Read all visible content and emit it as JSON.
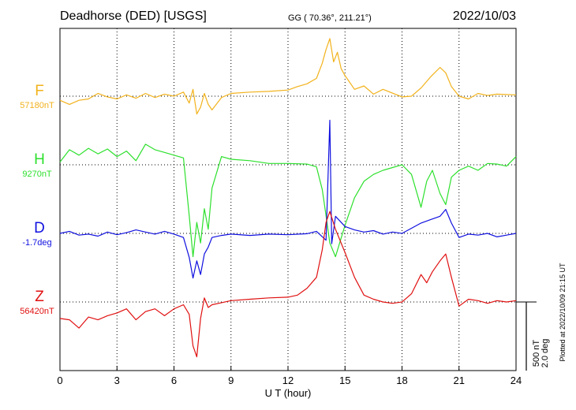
{
  "header": {
    "station": "Deadhorse (DED)  [USGS]",
    "coords": "GG ( 70.36°, 211.21°)",
    "date": "2022/10/03"
  },
  "footer": {
    "plotted_at": "Plotted at 2022/10/09 21:15 UT"
  },
  "chart_data": {
    "type": "line",
    "xlabel": "U T (hour)",
    "xlim": [
      0,
      24
    ],
    "x_ticks": [
      0,
      3,
      6,
      9,
      12,
      15,
      18,
      21,
      24
    ],
    "x_tick_labels": [
      "0",
      "3",
      "6",
      "9",
      "12",
      "15",
      "18",
      "21",
      "24"
    ],
    "grid": true,
    "scale_bar": {
      "label1": "500 nT",
      "label2": "2.0 deg",
      "nT": 500,
      "deg": 2.0
    },
    "series": [
      {
        "name": "F",
        "baseline_label": "57180nT",
        "baseline": 57180,
        "unit": "nT",
        "color": "#f2b21c",
        "points": [
          [
            0,
            57150
          ],
          [
            0.5,
            57120
          ],
          [
            1,
            57150
          ],
          [
            1.5,
            57160
          ],
          [
            2,
            57200
          ],
          [
            2.5,
            57175
          ],
          [
            3,
            57160
          ],
          [
            3.5,
            57190
          ],
          [
            4,
            57165
          ],
          [
            4.5,
            57200
          ],
          [
            5,
            57170
          ],
          [
            5.5,
            57195
          ],
          [
            6,
            57180
          ],
          [
            6.5,
            57210
          ],
          [
            6.8,
            57130
          ],
          [
            7,
            57230
          ],
          [
            7.2,
            57050
          ],
          [
            7.4,
            57100
          ],
          [
            7.6,
            57200
          ],
          [
            7.8,
            57120
          ],
          [
            8,
            57080
          ],
          [
            8.5,
            57170
          ],
          [
            9,
            57200
          ],
          [
            10,
            57210
          ],
          [
            11,
            57215
          ],
          [
            12,
            57225
          ],
          [
            12.5,
            57250
          ],
          [
            13,
            57270
          ],
          [
            13.5,
            57310
          ],
          [
            13.8,
            57420
          ],
          [
            14,
            57520
          ],
          [
            14.2,
            57600
          ],
          [
            14.4,
            57430
          ],
          [
            14.6,
            57500
          ],
          [
            14.8,
            57380
          ],
          [
            15,
            57330
          ],
          [
            15.5,
            57230
          ],
          [
            16,
            57255
          ],
          [
            16.5,
            57195
          ],
          [
            17,
            57230
          ],
          [
            18,
            57175
          ],
          [
            18.5,
            57180
          ],
          [
            19,
            57240
          ],
          [
            19.5,
            57320
          ],
          [
            20,
            57390
          ],
          [
            20.3,
            57350
          ],
          [
            20.6,
            57250
          ],
          [
            21,
            57180
          ],
          [
            21.5,
            57160
          ],
          [
            22,
            57200
          ],
          [
            22.5,
            57185
          ],
          [
            23,
            57195
          ],
          [
            24,
            57190
          ]
        ]
      },
      {
        "name": "H",
        "baseline_label": "9270nT",
        "baseline": 9270,
        "unit": "nT",
        "color": "#2de02d",
        "points": [
          [
            0,
            9290
          ],
          [
            0.5,
            9380
          ],
          [
            1,
            9340
          ],
          [
            1.5,
            9390
          ],
          [
            2,
            9350
          ],
          [
            2.5,
            9385
          ],
          [
            3,
            9330
          ],
          [
            3.5,
            9370
          ],
          [
            4,
            9300
          ],
          [
            4.5,
            9420
          ],
          [
            5,
            9380
          ],
          [
            5.5,
            9360
          ],
          [
            6,
            9340
          ],
          [
            6.5,
            9320
          ],
          [
            6.8,
            8900
          ],
          [
            7,
            8600
          ],
          [
            7.2,
            8850
          ],
          [
            7.4,
            8700
          ],
          [
            7.6,
            8950
          ],
          [
            7.8,
            8800
          ],
          [
            8,
            9100
          ],
          [
            8.5,
            9330
          ],
          [
            9,
            9310
          ],
          [
            10,
            9300
          ],
          [
            11,
            9280
          ],
          [
            12,
            9280
          ],
          [
            13,
            9275
          ],
          [
            13.5,
            9255
          ],
          [
            13.8,
            9090
          ],
          [
            14,
            8900
          ],
          [
            14.2,
            8700
          ],
          [
            14.5,
            8600
          ],
          [
            15,
            8830
          ],
          [
            15.5,
            9030
          ],
          [
            16,
            9150
          ],
          [
            16.5,
            9200
          ],
          [
            17,
            9230
          ],
          [
            17.5,
            9250
          ],
          [
            18,
            9270
          ],
          [
            18.5,
            9200
          ],
          [
            19,
            8960
          ],
          [
            19.3,
            9150
          ],
          [
            19.6,
            9230
          ],
          [
            20,
            9060
          ],
          [
            20.3,
            8980
          ],
          [
            20.6,
            9180
          ],
          [
            21,
            9230
          ],
          [
            21.5,
            9260
          ],
          [
            22,
            9230
          ],
          [
            22.5,
            9280
          ],
          [
            23,
            9275
          ],
          [
            23.5,
            9260
          ],
          [
            24,
            9330
          ]
        ]
      },
      {
        "name": "D",
        "baseline_label": "-1.7deg",
        "baseline": -1.7,
        "unit": "deg",
        "color": "#1010e0",
        "points": [
          [
            0,
            -1.7
          ],
          [
            0.5,
            -1.64
          ],
          [
            1,
            -1.75
          ],
          [
            1.5,
            -1.72
          ],
          [
            2,
            -1.78
          ],
          [
            2.5,
            -1.66
          ],
          [
            3,
            -1.74
          ],
          [
            3.5,
            -1.68
          ],
          [
            4,
            -1.6
          ],
          [
            4.5,
            -1.66
          ],
          [
            5,
            -1.72
          ],
          [
            5.5,
            -1.64
          ],
          [
            6,
            -1.72
          ],
          [
            6.5,
            -1.82
          ],
          [
            6.8,
            -2.4
          ],
          [
            7,
            -3.0
          ],
          [
            7.2,
            -2.5
          ],
          [
            7.4,
            -2.9
          ],
          [
            7.6,
            -2.3
          ],
          [
            7.8,
            -2.1
          ],
          [
            8,
            -1.82
          ],
          [
            8.5,
            -1.76
          ],
          [
            9,
            -1.72
          ],
          [
            10,
            -1.76
          ],
          [
            11,
            -1.72
          ],
          [
            12,
            -1.74
          ],
          [
            13,
            -1.71
          ],
          [
            13.5,
            -1.64
          ],
          [
            14,
            -1.9
          ],
          [
            14.2,
            1.6
          ],
          [
            14.3,
            -2.0
          ],
          [
            14.5,
            -1.2
          ],
          [
            15,
            -1.5
          ],
          [
            15.5,
            -1.6
          ],
          [
            16,
            -1.66
          ],
          [
            16.5,
            -1.62
          ],
          [
            17,
            -1.72
          ],
          [
            17.5,
            -1.66
          ],
          [
            18,
            -1.7
          ],
          [
            18.5,
            -1.55
          ],
          [
            19,
            -1.4
          ],
          [
            19.5,
            -1.3
          ],
          [
            20,
            -1.2
          ],
          [
            20.3,
            -1.0
          ],
          [
            20.6,
            -1.4
          ],
          [
            21,
            -1.82
          ],
          [
            21.5,
            -1.72
          ],
          [
            22,
            -1.75
          ],
          [
            22.5,
            -1.7
          ],
          [
            23,
            -1.8
          ],
          [
            23.5,
            -1.75
          ],
          [
            24,
            -1.7
          ]
        ]
      },
      {
        "name": "Z",
        "baseline_label": "56420nT",
        "baseline": 56420,
        "unit": "nT",
        "color": "#e01010",
        "points": [
          [
            0,
            56300
          ],
          [
            0.5,
            56290
          ],
          [
            1,
            56230
          ],
          [
            1.5,
            56310
          ],
          [
            2,
            56290
          ],
          [
            2.5,
            56320
          ],
          [
            3,
            56340
          ],
          [
            3.5,
            56370
          ],
          [
            4,
            56290
          ],
          [
            4.5,
            56350
          ],
          [
            5,
            56370
          ],
          [
            5.5,
            56320
          ],
          [
            6,
            56370
          ],
          [
            6.5,
            56400
          ],
          [
            6.8,
            56330
          ],
          [
            7,
            56100
          ],
          [
            7.2,
            56020
          ],
          [
            7.4,
            56300
          ],
          [
            7.6,
            56450
          ],
          [
            7.8,
            56380
          ],
          [
            8,
            56400
          ],
          [
            8.5,
            56415
          ],
          [
            9,
            56430
          ],
          [
            10,
            56440
          ],
          [
            11,
            56450
          ],
          [
            12,
            56455
          ],
          [
            12.5,
            56470
          ],
          [
            13,
            56520
          ],
          [
            13.5,
            56600
          ],
          [
            13.8,
            56800
          ],
          [
            14,
            57000
          ],
          [
            14.2,
            57080
          ],
          [
            14.5,
            56950
          ],
          [
            15,
            56780
          ],
          [
            15.5,
            56600
          ],
          [
            16,
            56470
          ],
          [
            16.5,
            56440
          ],
          [
            17,
            56420
          ],
          [
            17.5,
            56410
          ],
          [
            18,
            56420
          ],
          [
            18.5,
            56480
          ],
          [
            19,
            56620
          ],
          [
            19.3,
            56560
          ],
          [
            19.6,
            56640
          ],
          [
            20,
            56720
          ],
          [
            20.3,
            56770
          ],
          [
            20.6,
            56600
          ],
          [
            21,
            56390
          ],
          [
            21.5,
            56440
          ],
          [
            22,
            56430
          ],
          [
            22.5,
            56410
          ],
          [
            23,
            56430
          ],
          [
            23.5,
            56420
          ],
          [
            24,
            56430
          ]
        ]
      }
    ]
  }
}
